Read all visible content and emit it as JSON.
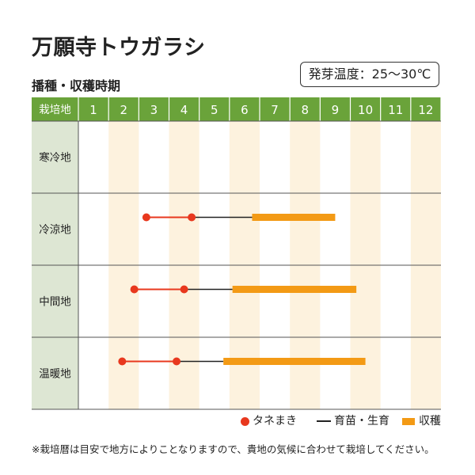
{
  "title": "万願寺トウガラシ",
  "temperature_label": "発芽温度：25～30℃",
  "section_title": "播種・収穫時期",
  "legend": {
    "sowing": "タネまき",
    "growing": "育苗・生育",
    "harvest": "収穫"
  },
  "footnote": "※栽培暦は目安で地方によりことなりますので、貴地の気候に合わせて栽培してください。",
  "colors": {
    "header_green": "#6aa33a",
    "region_cell": "#dde6d3",
    "stripe": "#fdf2de",
    "sowing_dot": "#e8381e",
    "harvest_bar": "#f39a15",
    "line": "#222222"
  },
  "chart_data": {
    "type": "gantt",
    "header_label": "栽培地",
    "months": [
      "1",
      "2",
      "3",
      "4",
      "5",
      "6",
      "7",
      "8",
      "9",
      "10",
      "11",
      "12"
    ],
    "rows": [
      {
        "region": "寒冷地",
        "sowing": null,
        "growing": null,
        "harvest": null
      },
      {
        "region": "冷涼地",
        "sowing": [
          3.25,
          4.75
        ],
        "growing": [
          4.75,
          6.75
        ],
        "harvest": [
          6.75,
          9.5
        ]
      },
      {
        "region": "中間地",
        "sowing": [
          2.85,
          4.5
        ],
        "growing": [
          4.5,
          6.1
        ],
        "harvest": [
          6.1,
          10.2
        ]
      },
      {
        "region": "温暖地",
        "sowing": [
          2.45,
          4.25
        ],
        "growing": [
          4.25,
          5.8
        ],
        "harvest": [
          5.8,
          10.5
        ]
      }
    ]
  }
}
